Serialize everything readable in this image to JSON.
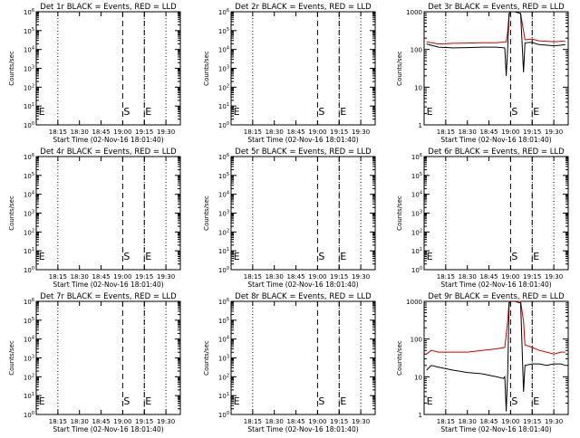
{
  "chart_data": [
    {
      "type": "line",
      "title": "Det 1r BLACK = Events, RED = LLD",
      "ylabel": "Counts/sec",
      "xlabel": "Start Time (02-Nov-16 18:01:40)",
      "xticks": [
        "18:15",
        "18:30",
        "18:45",
        "19:00",
        "19:15",
        "19:30"
      ],
      "yscale": "log",
      "ylim": [
        1,
        1000000
      ],
      "yticks": [
        "10^0",
        "10^1",
        "10^2",
        "10^3",
        "10^4",
        "10^5",
        "10^6"
      ],
      "markers": [
        {
          "label": "E",
          "time": "18:01"
        },
        {
          "label": "S",
          "time": "19:00"
        },
        {
          "label": "E",
          "time": "19:15"
        }
      ],
      "series": []
    },
    {
      "type": "line",
      "title": "Det 2r BLACK = Events, RED = LLD",
      "ylabel": "Counts/sec",
      "xlabel": "Start Time (02-Nov-16 18:01:40)",
      "xticks": [
        "18:15",
        "18:30",
        "18:45",
        "19:00",
        "19:15",
        "19:30"
      ],
      "yscale": "log",
      "ylim": [
        1,
        1000000
      ],
      "yticks": [
        "10^0",
        "10^1",
        "10^2",
        "10^3",
        "10^4",
        "10^5",
        "10^6"
      ],
      "markers": [
        {
          "label": "E",
          "time": "18:01"
        },
        {
          "label": "S",
          "time": "19:00"
        },
        {
          "label": "E",
          "time": "19:15"
        }
      ],
      "series": []
    },
    {
      "type": "line",
      "title": "Det 3r BLACK = Events, RED = LLD",
      "ylabel": "Counts/sec",
      "xlabel": "Start Time (02-Nov-16 18:01:40)",
      "xticks": [
        "18:15",
        "18:30",
        "18:45",
        "19:00",
        "19:15",
        "19:30"
      ],
      "yscale": "log",
      "ylim": [
        1,
        1000
      ],
      "yticks": [
        "1",
        "10",
        "100",
        "1000"
      ],
      "markers": [
        {
          "label": "E",
          "time": "18:01"
        },
        {
          "label": "S",
          "time": "19:00"
        },
        {
          "label": "E",
          "time": "19:15"
        }
      ],
      "series": [
        {
          "color": "#cc0000",
          "x": [
            1.67,
            10,
            20,
            30,
            40,
            50,
            57,
            58,
            59,
            60,
            63,
            67,
            70,
            75,
            78,
            80,
            85,
            90,
            95,
            98
          ],
          "y": [
            160,
            140,
            145,
            148,
            150,
            150,
            160,
            300,
            900,
            1000,
            1000,
            900,
            180,
            190,
            175,
            170,
            165,
            160,
            165,
            165
          ]
        },
        {
          "color": "#000000",
          "x": [
            1.67,
            10,
            20,
            30,
            40,
            50,
            56,
            57,
            58,
            59,
            60,
            63,
            67,
            69,
            70,
            75,
            78,
            80,
            85,
            90,
            95,
            98
          ],
          "y": [
            140,
            115,
            110,
            112,
            115,
            115,
            110,
            20,
            110,
            900,
            1000,
            1000,
            900,
            25,
            150,
            155,
            140,
            135,
            130,
            125,
            130,
            135
          ]
        }
      ]
    },
    {
      "type": "line",
      "title": "Det 4r BLACK = Events, RED = LLD",
      "ylabel": "Counts/sec",
      "xlabel": "Start Time (02-Nov-16 18:01:40)",
      "xticks": [
        "18:15",
        "18:30",
        "18:45",
        "19:00",
        "19:15",
        "19:30"
      ],
      "yscale": "log",
      "ylim": [
        1,
        1000000
      ],
      "yticks": [
        "10^0",
        "10^1",
        "10^2",
        "10^3",
        "10^4",
        "10^5",
        "10^6"
      ],
      "markers": [
        {
          "label": "E",
          "time": "18:01"
        },
        {
          "label": "S",
          "time": "19:00"
        },
        {
          "label": "E",
          "time": "19:15"
        }
      ],
      "series": []
    },
    {
      "type": "line",
      "title": "Det 5r BLACK = Events, RED = LLD",
      "ylabel": "Counts/sec",
      "xlabel": "Start Time (02-Nov-16 18:01:40)",
      "xticks": [
        "18:15",
        "18:30",
        "18:45",
        "19:00",
        "19:15",
        "19:30"
      ],
      "yscale": "log",
      "ylim": [
        1,
        1000000
      ],
      "yticks": [
        "10^0",
        "10^1",
        "10^2",
        "10^3",
        "10^4",
        "10^5",
        "10^6"
      ],
      "markers": [
        {
          "label": "E",
          "time": "18:01"
        },
        {
          "label": "S",
          "time": "19:00"
        },
        {
          "label": "E",
          "time": "19:15"
        }
      ],
      "series": []
    },
    {
      "type": "line",
      "title": "Det 6r BLACK = Events, RED = LLD",
      "ylabel": "Counts/sec",
      "xlabel": "Start Time (02-Nov-16 18:01:40)",
      "xticks": [
        "18:15",
        "18:30",
        "18:45",
        "19:00",
        "19:15",
        "19:30"
      ],
      "yscale": "log",
      "ylim": [
        1,
        1000000
      ],
      "yticks": [
        "10^0",
        "10^1",
        "10^2",
        "10^3",
        "10^4",
        "10^5",
        "10^6"
      ],
      "markers": [
        {
          "label": "E",
          "time": "18:01"
        },
        {
          "label": "S",
          "time": "19:00"
        },
        {
          "label": "E",
          "time": "19:15"
        }
      ],
      "series": []
    },
    {
      "type": "line",
      "title": "Det 7r BLACK = Events, RED = LLD",
      "ylabel": "Counts/sec",
      "xlabel": "Start Time (02-Nov-16 18:01:40)",
      "xticks": [
        "18:15",
        "18:30",
        "18:45",
        "19:00",
        "19:15",
        "19:30"
      ],
      "yscale": "log",
      "ylim": [
        1,
        1000000
      ],
      "yticks": [
        "10^0",
        "10^1",
        "10^2",
        "10^3",
        "10^4",
        "10^5",
        "10^6"
      ],
      "markers": [
        {
          "label": "E",
          "time": "18:01"
        },
        {
          "label": "S",
          "time": "19:00"
        },
        {
          "label": "E",
          "time": "19:15"
        }
      ],
      "series": []
    },
    {
      "type": "line",
      "title": "Det 8r BLACK = Events, RED = LLD",
      "ylabel": "Counts/sec",
      "xlabel": "Start Time (02-Nov-16 18:01:40)",
      "xticks": [
        "18:15",
        "18:30",
        "18:45",
        "19:00",
        "19:15",
        "19:30"
      ],
      "yscale": "log",
      "ylim": [
        1,
        1000000
      ],
      "yticks": [
        "10^0",
        "10^1",
        "10^2",
        "10^3",
        "10^4",
        "10^5",
        "10^6"
      ],
      "markers": [
        {
          "label": "E",
          "time": "18:01"
        },
        {
          "label": "S",
          "time": "19:00"
        },
        {
          "label": "E",
          "time": "19:15"
        }
      ],
      "series": []
    },
    {
      "type": "line",
      "title": "Det 9r BLACK = Events, RED = LLD",
      "ylabel": "Counts/sec",
      "xlabel": "Start Time (02-Nov-16 18:01:40)",
      "xticks": [
        "18:15",
        "18:30",
        "18:45",
        "19:00",
        "19:15",
        "19:30"
      ],
      "yscale": "log",
      "ylim": [
        1,
        1000
      ],
      "yticks": [
        "1",
        "10",
        "100",
        "1000"
      ],
      "markers": [
        {
          "label": "E",
          "time": "18:01"
        },
        {
          "label": "S",
          "time": "19:00"
        },
        {
          "label": "E",
          "time": "19:15"
        }
      ],
      "series": [
        {
          "color": "#cc0000",
          "x": [
            1.67,
            5,
            10,
            20,
            30,
            40,
            50,
            56,
            58,
            59,
            60,
            63,
            67,
            69,
            70,
            75,
            80,
            85,
            90,
            95,
            98
          ],
          "y": [
            40,
            50,
            45,
            45,
            45,
            50,
            55,
            60,
            300,
            1000,
            1000,
            1000,
            1000,
            300,
            70,
            60,
            50,
            45,
            40,
            45,
            45
          ]
        },
        {
          "color": "#000000",
          "x": [
            1.67,
            5,
            10,
            20,
            30,
            40,
            50,
            55,
            56,
            57,
            58,
            59,
            60,
            63,
            67,
            69,
            70,
            75,
            80,
            85,
            90,
            95,
            98
          ],
          "y": [
            15,
            20,
            18,
            15,
            13,
            12,
            10,
            9,
            10,
            1.2,
            12,
            900,
            1000,
            1000,
            900,
            4,
            20,
            22,
            22,
            20,
            22,
            22,
            20
          ]
        }
      ]
    }
  ]
}
